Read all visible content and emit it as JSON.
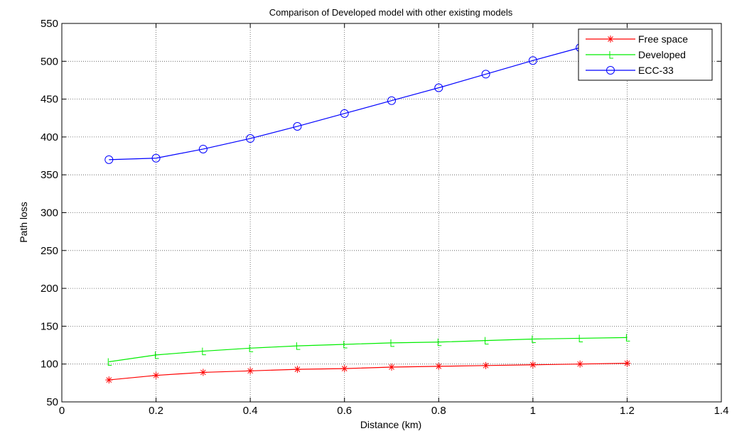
{
  "chart_data": {
    "type": "line",
    "title": "Comparison of Developed model with other existing models",
    "xlabel": "Distance (km)",
    "ylabel": "Path loss",
    "xlim": [
      0,
      1.4
    ],
    "ylim": [
      50,
      550
    ],
    "xticks": [
      0,
      0.2,
      0.4,
      0.6,
      0.8,
      1,
      1.2,
      1.4
    ],
    "yticks": [
      50,
      100,
      150,
      200,
      250,
      300,
      350,
      400,
      450,
      500,
      550
    ],
    "grid": true,
    "legend_position": "top-right",
    "x": [
      0.1,
      0.2,
      0.3,
      0.4,
      0.5,
      0.6,
      0.7,
      0.8,
      0.9,
      1.0,
      1.1,
      1.2
    ],
    "series": [
      {
        "name": "Free space",
        "color": "#ff0000",
        "marker": "star",
        "values": [
          79,
          85,
          89,
          91,
          93,
          94,
          96,
          97,
          98,
          99,
          100,
          101
        ]
      },
      {
        "name": "Developed",
        "color": "#00ee00",
        "marker": "tick",
        "values": [
          103,
          112,
          117,
          121,
          124,
          126,
          128,
          129,
          131,
          133,
          134,
          135
        ]
      },
      {
        "name": "ECC-33",
        "color": "#0000ff",
        "marker": "circle",
        "values": [
          370,
          372,
          384,
          398,
          414,
          431,
          448,
          465,
          483,
          501,
          518,
          536
        ]
      }
    ]
  }
}
